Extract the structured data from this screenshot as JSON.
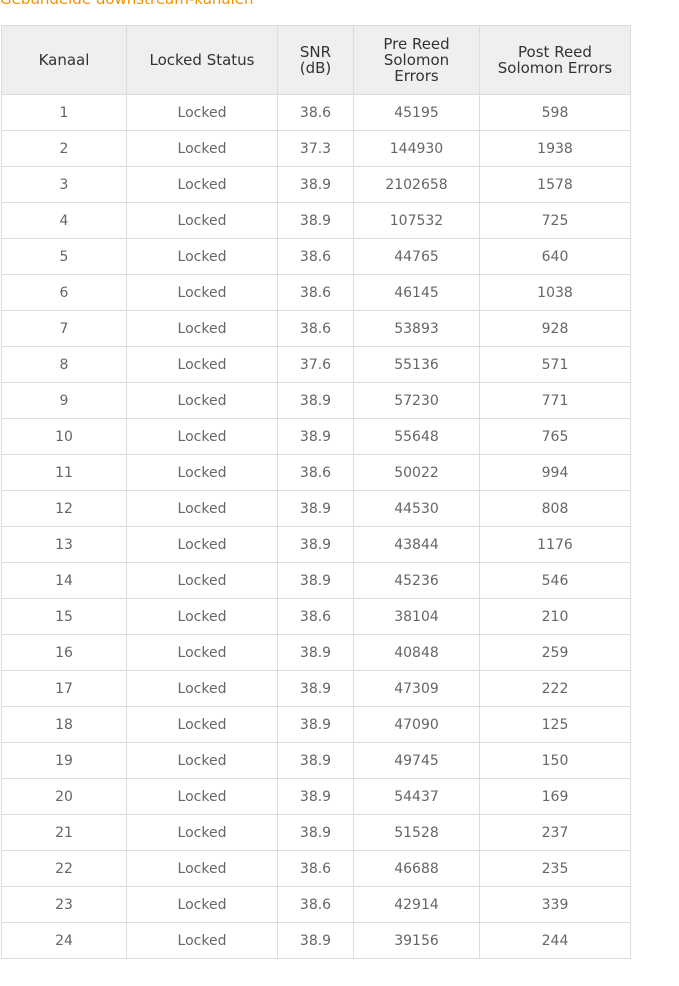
{
  "title": "Gebundelde downstream-kanalen",
  "colors": {
    "title": "#f39200",
    "header_bg": "#efefef",
    "border": "#dcdcdc"
  },
  "table": {
    "headers": [
      "Kanaal",
      "Locked Status",
      "SNR (dB)",
      "Pre Reed Solomon Errors",
      "Post Reed Solomon Errors"
    ],
    "rows": [
      [
        "1",
        "Locked",
        "38.6",
        "45195",
        "598"
      ],
      [
        "2",
        "Locked",
        "37.3",
        "144930",
        "1938"
      ],
      [
        "3",
        "Locked",
        "38.9",
        "2102658",
        "1578"
      ],
      [
        "4",
        "Locked",
        "38.9",
        "107532",
        "725"
      ],
      [
        "5",
        "Locked",
        "38.6",
        "44765",
        "640"
      ],
      [
        "6",
        "Locked",
        "38.6",
        "46145",
        "1038"
      ],
      [
        "7",
        "Locked",
        "38.6",
        "53893",
        "928"
      ],
      [
        "8",
        "Locked",
        "37.6",
        "55136",
        "571"
      ],
      [
        "9",
        "Locked",
        "38.9",
        "57230",
        "771"
      ],
      [
        "10",
        "Locked",
        "38.9",
        "55648",
        "765"
      ],
      [
        "11",
        "Locked",
        "38.6",
        "50022",
        "994"
      ],
      [
        "12",
        "Locked",
        "38.9",
        "44530",
        "808"
      ],
      [
        "13",
        "Locked",
        "38.9",
        "43844",
        "1176"
      ],
      [
        "14",
        "Locked",
        "38.9",
        "45236",
        "546"
      ],
      [
        "15",
        "Locked",
        "38.6",
        "38104",
        "210"
      ],
      [
        "16",
        "Locked",
        "38.9",
        "40848",
        "259"
      ],
      [
        "17",
        "Locked",
        "38.9",
        "47309",
        "222"
      ],
      [
        "18",
        "Locked",
        "38.9",
        "47090",
        "125"
      ],
      [
        "19",
        "Locked",
        "38.9",
        "49745",
        "150"
      ],
      [
        "20",
        "Locked",
        "38.9",
        "54437",
        "169"
      ],
      [
        "21",
        "Locked",
        "38.9",
        "51528",
        "237"
      ],
      [
        "22",
        "Locked",
        "38.6",
        "46688",
        "235"
      ],
      [
        "23",
        "Locked",
        "38.6",
        "42914",
        "339"
      ],
      [
        "24",
        "Locked",
        "38.9",
        "39156",
        "244"
      ]
    ]
  }
}
